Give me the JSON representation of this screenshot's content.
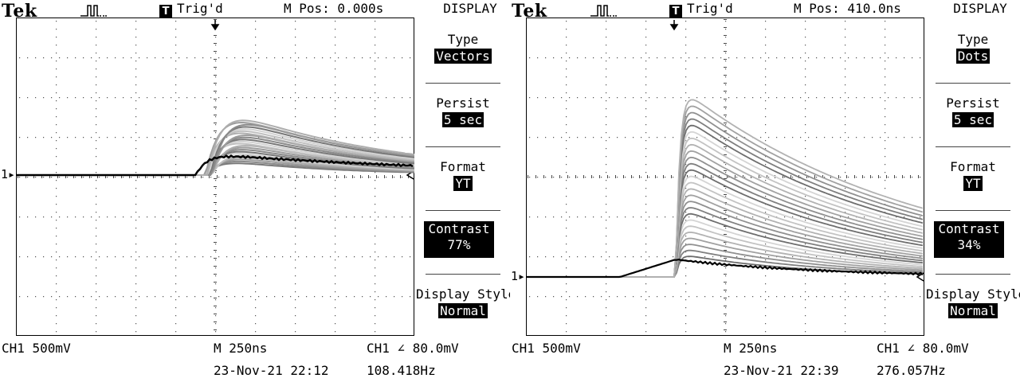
{
  "scopes": [
    {
      "brand": "Tek",
      "trigger_badge": "T",
      "trigger_status": "Trig'd",
      "m_pos": "M Pos: 0.000s",
      "menu_title": "DISPLAY",
      "menu": {
        "type": {
          "label": "Type",
          "value": "Vectors"
        },
        "persist": {
          "label": "Persist",
          "value": "5 sec"
        },
        "format": {
          "label": "Format",
          "value": "YT"
        },
        "contrast": {
          "label": "Contrast",
          "value": "77%"
        },
        "display_style": {
          "label": "Display Style",
          "value": "Normal"
        }
      },
      "ch_marker": "1",
      "channel_scale": "CH1  500mV",
      "timebase": "M 250ns",
      "trigger_level": "CH1 ∠ 80.0mV",
      "datetime": "23-Nov-21 22:12",
      "frequency": "108.418Hz"
    },
    {
      "brand": "Tek",
      "trigger_badge": "T",
      "trigger_status": "Trig'd",
      "m_pos": "M Pos: 410.0ns",
      "menu_title": "DISPLAY",
      "menu": {
        "type": {
          "label": "Type",
          "value": "Dots"
        },
        "persist": {
          "label": "Persist",
          "value": "5 sec"
        },
        "format": {
          "label": "Format",
          "value": "YT"
        },
        "contrast": {
          "label": "Contrast",
          "value": "34%"
        },
        "display_style": {
          "label": "Display Style",
          "value": "Normal"
        }
      },
      "ch_marker": "1",
      "channel_scale": "CH1  500mV",
      "timebase": "M 250ns",
      "trigger_level": "CH1 ∠ 80.0mV",
      "datetime": "23-Nov-21 22:39",
      "frequency": "276.057Hz"
    }
  ]
}
